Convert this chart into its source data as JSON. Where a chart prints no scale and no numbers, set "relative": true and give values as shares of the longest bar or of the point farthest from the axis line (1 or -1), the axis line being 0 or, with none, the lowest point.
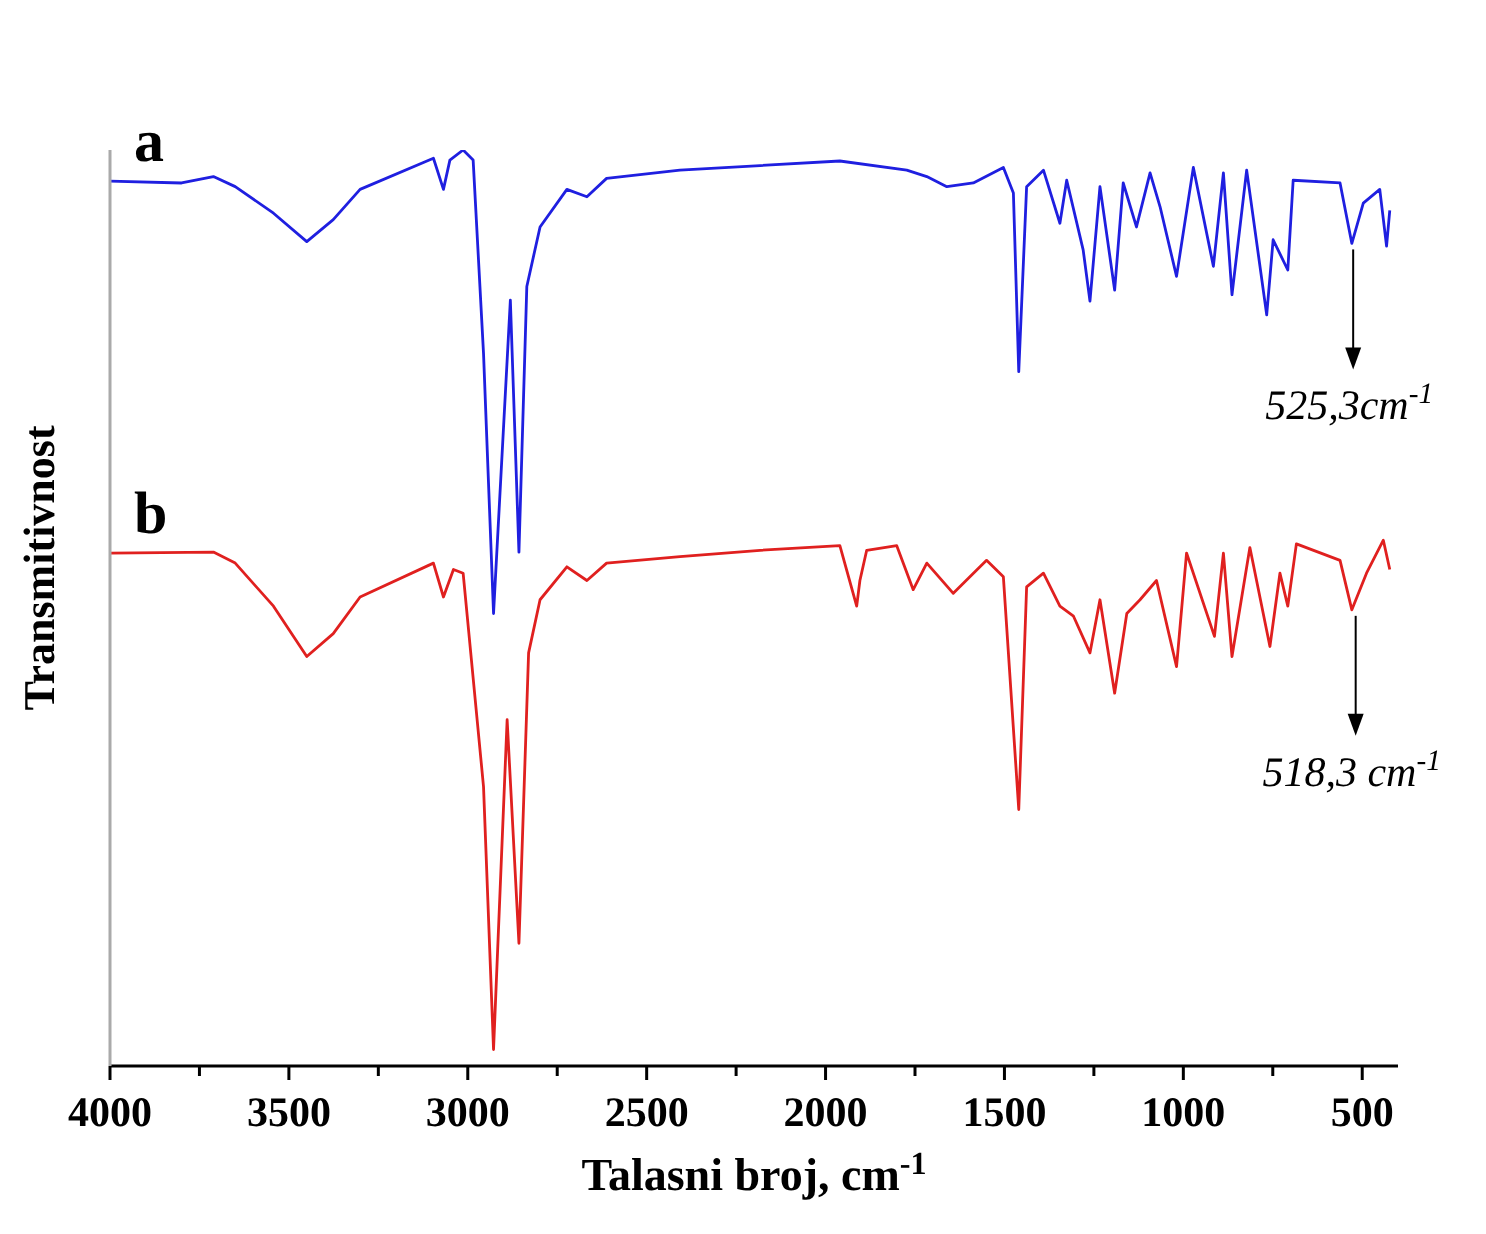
{
  "chart_data": {
    "type": "line",
    "relative": true,
    "xlabel": "Talasni broj, cm$^{-1}$",
    "ylabel": "Transmitivnost",
    "xlim": [
      4000,
      400
    ],
    "xticks": [
      4000,
      {
        "value": 3750,
        "label": null
      },
      3500,
      {
        "value": 3250,
        "label": null
      },
      3000,
      {
        "value": 2750,
        "label": null
      },
      2500,
      {
        "value": 2250,
        "label": null
      },
      2000,
      {
        "value": 1750,
        "label": null
      },
      1500,
      {
        "value": 1250,
        "label": null
      },
      1000,
      {
        "value": 750,
        "label": null
      },
      500
    ],
    "grid": false,
    "legend": false,
    "marker": "none",
    "line_style": "solid",
    "annotations": [
      {
        "text": "525,3cm$^{-1}$",
        "x": 525.3,
        "y": 0.898
      },
      {
        "text": "518,3 cm$^{-1}$",
        "x": 518.3,
        "y": 0.498
      }
    ],
    "series": [
      {
        "name": "a",
        "color": "#1f1fe0",
        "x": [
          4000,
          3800,
          3711,
          3650,
          3543,
          3450,
          3376,
          3301,
          3096,
          3068,
          3050,
          3013,
          2985,
          2956,
          2928,
          2881,
          2857,
          2835,
          2798,
          2723,
          2667,
          2612,
          2407,
          2183,
          1960,
          1773,
          1717,
          1661,
          1587,
          1503,
          1475,
          1460,
          1438,
          1391,
          1345,
          1326,
          1280,
          1261,
          1233,
          1192,
          1168,
          1131,
          1093,
          1065,
          1019,
          972,
          916,
          888,
          864,
          823,
          767,
          749,
          708,
          693,
          562,
          529,
          497,
          451,
          432,
          423
        ],
        "values": [
          0.966,
          0.964,
          0.971,
          0.96,
          0.931,
          0.9,
          0.924,
          0.957,
          0.991,
          0.957,
          0.989,
          1.0,
          0.989,
          0.778,
          0.494,
          0.836,
          0.561,
          0.851,
          0.916,
          0.957,
          0.949,
          0.969,
          0.978,
          0.983,
          0.988,
          0.978,
          0.971,
          0.96,
          0.964,
          0.981,
          0.953,
          0.758,
          0.96,
          0.978,
          0.92,
          0.967,
          0.891,
          0.835,
          0.96,
          0.847,
          0.964,
          0.916,
          0.975,
          0.938,
          0.862,
          0.981,
          0.873,
          0.975,
          0.842,
          0.978,
          0.82,
          0.902,
          0.869,
          0.967,
          0.964,
          0.898,
          0.942,
          0.957,
          0.895,
          0.934
        ]
      },
      {
        "name": "b",
        "color": "#e0201f",
        "x": [
          4000,
          3711,
          3650,
          3543,
          3450,
          3376,
          3301,
          3096,
          3068,
          3040,
          3013,
          2956,
          2928,
          2890,
          2857,
          2830,
          2798,
          2723,
          2667,
          2612,
          2407,
          2183,
          1960,
          1913,
          1904,
          1885,
          1801,
          1755,
          1717,
          1643,
          1550,
          1503,
          1460,
          1438,
          1391,
          1345,
          1307,
          1261,
          1233,
          1192,
          1158,
          1121,
          1075,
          1019,
          991,
          913,
          888,
          864,
          814,
          758,
          730,
          708,
          684,
          562,
          529,
          488,
          441,
          423
        ],
        "values": [
          0.56,
          0.561,
          0.549,
          0.502,
          0.447,
          0.472,
          0.512,
          0.549,
          0.512,
          0.542,
          0.538,
          0.305,
          0.018,
          0.378,
          0.134,
          0.451,
          0.509,
          0.545,
          0.53,
          0.549,
          0.556,
          0.563,
          0.568,
          0.502,
          0.53,
          0.563,
          0.568,
          0.52,
          0.549,
          0.516,
          0.552,
          0.534,
          0.28,
          0.523,
          0.538,
          0.502,
          0.491,
          0.451,
          0.509,
          0.407,
          0.494,
          0.509,
          0.53,
          0.436,
          0.56,
          0.469,
          0.56,
          0.447,
          0.566,
          0.458,
          0.538,
          0.502,
          0.57,
          0.552,
          0.498,
          0.538,
          0.574,
          0.542
        ]
      }
    ]
  }
}
